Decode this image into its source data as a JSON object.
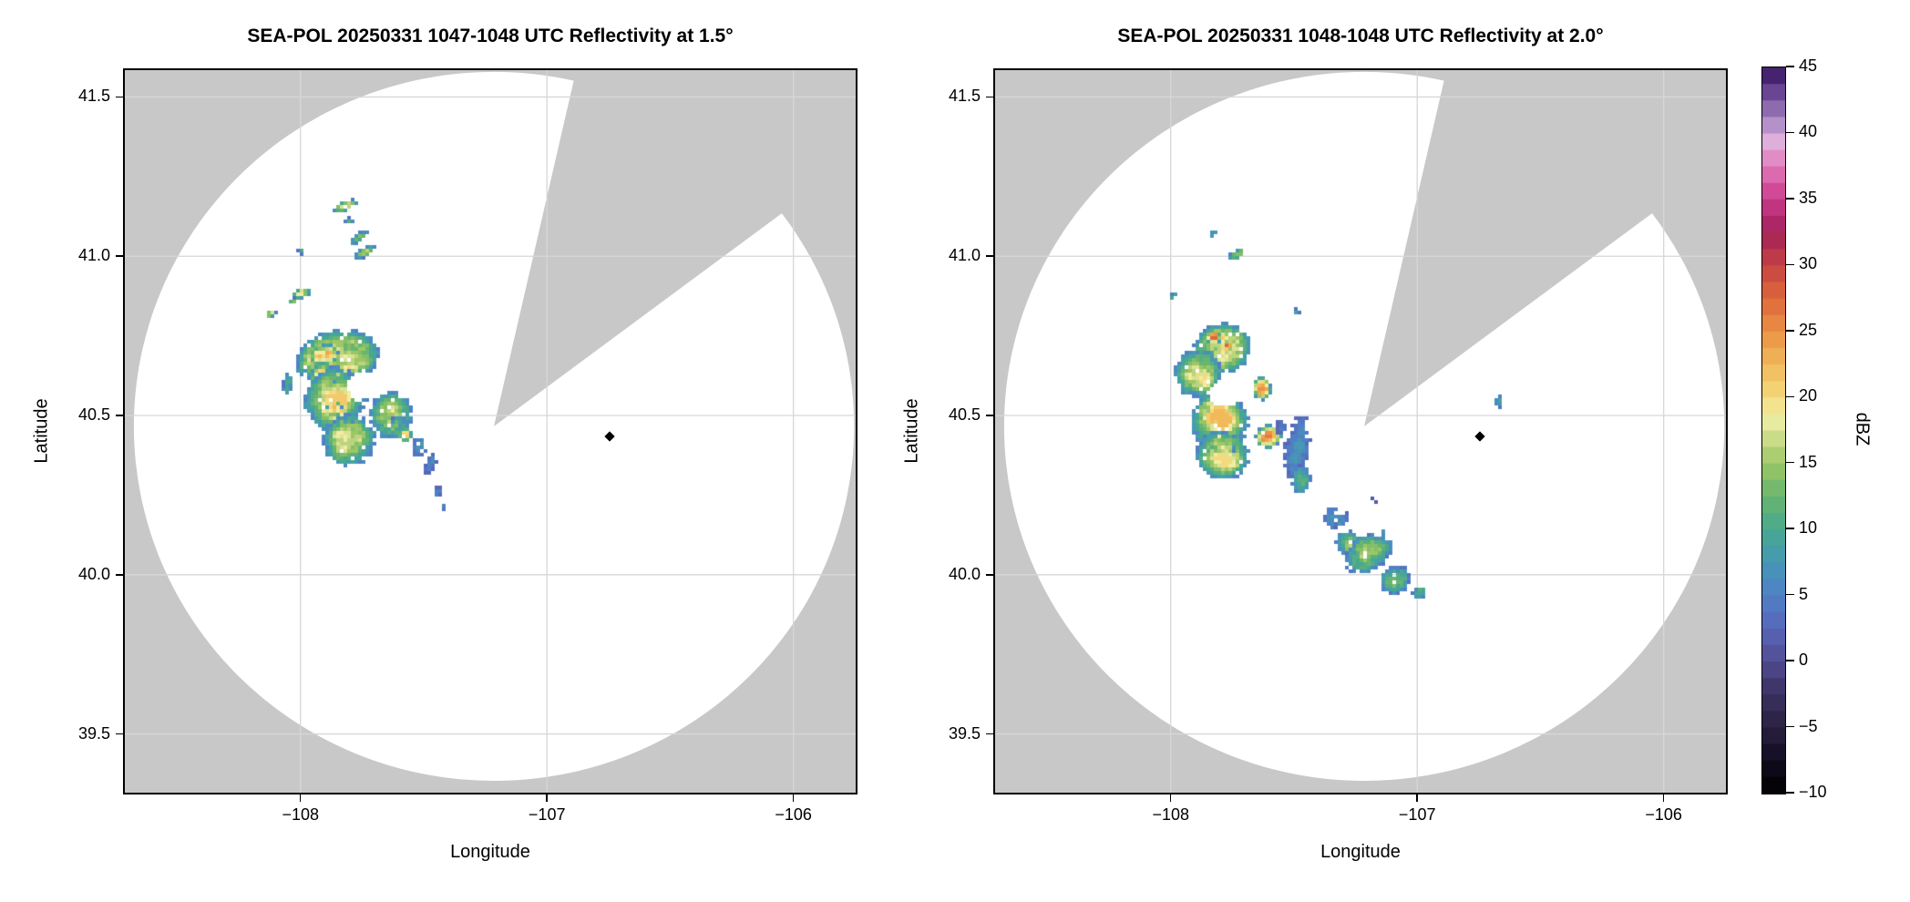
{
  "figure": {
    "background": "#ffffff",
    "mask_color": "#c8c8c8",
    "grid_color": "#d7d7d7",
    "frame_color": "#000000",
    "marker_color": "#000000"
  },
  "chart_data": {
    "type": "heatmap",
    "description": "Two radar PPI reflectivity panels with shared dBZ colorbar; white scan circle on gray no-data mask with a gray blocked sector toward the NNE, speckled precipitation echoes, and a black diamond site marker.",
    "panels": [
      {
        "title": "SEA-POL 20250331 1047-1048 UTC Reflectivity at 1.5°",
        "xlabel": "Longitude",
        "ylabel": "Latitude",
        "xlim": [
          -108.72,
          -105.74
        ],
        "ylim": [
          39.31,
          41.59
        ],
        "xticks": [
          -108,
          -107,
          -106
        ],
        "yticks": [
          41.5,
          41.0,
          40.5,
          40.0,
          39.5
        ],
        "grid": true,
        "radar_center": {
          "lon": -107.215,
          "lat": 40.466
        },
        "scan_radius_deg": {
          "lon": 1.461,
          "lat": 1.113
        },
        "blocked_sector_az_deg": [
          13,
          53.5
        ],
        "site_marker": {
          "lon": -106.747,
          "lat": 40.434
        },
        "echoes": [
          {
            "lon": -107.82,
            "lat": 41.157,
            "rlon": 0.05,
            "rlat": 0.016,
            "rot": -20,
            "peak": 19,
            "min": 4
          },
          {
            "lon": -107.8,
            "lat": 41.112,
            "rlon": 0.018,
            "rlat": 0.009,
            "rot": 0,
            "peak": 12,
            "min": 3.5
          },
          {
            "lon": -107.76,
            "lat": 41.06,
            "rlon": 0.045,
            "rlat": 0.012,
            "rot": -35,
            "peak": 13,
            "min": 3.5
          },
          {
            "lon": -107.74,
            "lat": 41.012,
            "rlon": 0.05,
            "rlat": 0.014,
            "rot": -30,
            "peak": 15,
            "min": 4
          },
          {
            "lon": -108.0,
            "lat": 41.015,
            "rlon": 0.012,
            "rlat": 0.007,
            "rot": 0,
            "peak": 9,
            "min": 3
          },
          {
            "lon": -107.99,
            "lat": 40.885,
            "rlon": 0.04,
            "rlat": 0.016,
            "rot": -15,
            "peak": 20,
            "min": 4
          },
          {
            "lon": -108.03,
            "lat": 40.86,
            "rlon": 0.018,
            "rlat": 0.009,
            "rot": 0,
            "peak": 12,
            "min": 3.5
          },
          {
            "lon": -108.12,
            "lat": 40.82,
            "rlon": 0.024,
            "rlat": 0.011,
            "rot": -20,
            "peak": 15,
            "min": 4
          },
          {
            "lon": -108.05,
            "lat": 40.6,
            "rlon": 0.022,
            "rlat": 0.038,
            "rot": 10,
            "peak": 13,
            "min": 4
          },
          {
            "lon": -107.85,
            "lat": 40.68,
            "rlon": 0.165,
            "rlat": 0.085,
            "rot": -8,
            "peak": 21,
            "min": 5
          },
          {
            "lon": -107.905,
            "lat": 40.69,
            "rlon": 0.055,
            "rlat": 0.032,
            "rot": -12,
            "peak": 27,
            "min": 6
          },
          {
            "lon": -107.91,
            "lat": 40.61,
            "rlon": 0.05,
            "rlat": 0.05,
            "rot": 0,
            "peak": 26,
            "min": 6
          },
          {
            "lon": -107.86,
            "lat": 40.55,
            "rlon": 0.125,
            "rlat": 0.1,
            "rot": 0,
            "peak": 19,
            "min": 5
          },
          {
            "lon": -107.865,
            "lat": 40.52,
            "rlon": 0.032,
            "rlat": 0.026,
            "rot": 0,
            "peak": 26,
            "min": 6
          },
          {
            "lon": -107.8,
            "lat": 40.42,
            "rlon": 0.105,
            "rlat": 0.085,
            "rot": -10,
            "peak": 17,
            "min": 5
          },
          {
            "lon": -107.63,
            "lat": 40.5,
            "rlon": 0.085,
            "rlat": 0.075,
            "rot": 0,
            "peak": 17,
            "min": 5
          },
          {
            "lon": -107.575,
            "lat": 40.44,
            "rlon": 0.028,
            "rlat": 0.02,
            "rot": 0,
            "peak": 27,
            "min": 6
          },
          {
            "lon": -107.6,
            "lat": 40.48,
            "rlon": 0.04,
            "rlat": 0.02,
            "rot": -25,
            "peak": 10,
            "min": 4
          },
          {
            "lon": -107.52,
            "lat": 40.4,
            "rlon": 0.03,
            "rlat": 0.03,
            "rot": 0,
            "peak": 9,
            "min": 3.5
          },
          {
            "lon": -107.47,
            "lat": 40.35,
            "rlon": 0.022,
            "rlat": 0.04,
            "rot": 15,
            "peak": 5,
            "min": 2
          },
          {
            "lon": -107.44,
            "lat": 40.26,
            "rlon": 0.014,
            "rlat": 0.02,
            "rot": 0,
            "peak": 6,
            "min": 2
          },
          {
            "lon": -107.42,
            "lat": 40.21,
            "rlon": 0.012,
            "rlat": 0.012,
            "rot": 0,
            "peak": 5,
            "min": 2
          }
        ],
        "holes": [
          {
            "lon": -107.755,
            "lat": 40.59,
            "rlon": 0.055,
            "rlat": 0.04
          }
        ]
      },
      {
        "title": "SEA-POL 20250331 1048-1048 UTC Reflectivity at 2.0°",
        "xlabel": "Longitude",
        "ylabel": "Latitude",
        "xlim": [
          -108.72,
          -105.74
        ],
        "ylim": [
          39.31,
          41.59
        ],
        "xticks": [
          -108,
          -107,
          -106
        ],
        "yticks": [
          41.5,
          41.0,
          40.5,
          40.0,
          39.5
        ],
        "grid": true,
        "radar_center": {
          "lon": -107.215,
          "lat": 40.466
        },
        "scan_radius_deg": {
          "lon": 1.461,
          "lat": 1.113
        },
        "blocked_sector_az_deg": [
          13,
          53.5
        ],
        "site_marker": {
          "lon": -106.747,
          "lat": 40.434
        },
        "echoes": [
          {
            "lon": -107.83,
            "lat": 41.071,
            "rlon": 0.02,
            "rlat": 0.009,
            "rot": -30,
            "peak": 14,
            "min": 4
          },
          {
            "lon": -107.73,
            "lat": 41.006,
            "rlon": 0.045,
            "rlat": 0.014,
            "rot": -30,
            "peak": 15,
            "min": 4
          },
          {
            "lon": -107.985,
            "lat": 40.877,
            "rlon": 0.022,
            "rlat": 0.009,
            "rot": -40,
            "peak": 12,
            "min": 3.5
          },
          {
            "lon": -107.49,
            "lat": 40.826,
            "rlon": 0.014,
            "rlat": 0.008,
            "rot": 0,
            "peak": 12,
            "min": 3.5
          },
          {
            "lon": -107.79,
            "lat": 40.71,
            "rlon": 0.115,
            "rlat": 0.075,
            "rot": -10,
            "peak": 21,
            "min": 5
          },
          {
            "lon": -107.825,
            "lat": 40.745,
            "rlon": 0.03,
            "rlat": 0.02,
            "rot": 0,
            "peak": 26,
            "min": 6
          },
          {
            "lon": -107.77,
            "lat": 40.72,
            "rlon": 0.022,
            "rlat": 0.016,
            "rot": 0,
            "peak": 26,
            "min": 6
          },
          {
            "lon": -107.875,
            "lat": 40.685,
            "rlon": 0.055,
            "rlat": 0.022,
            "rot": -5,
            "peak": 26,
            "min": 6
          },
          {
            "lon": -107.89,
            "lat": 40.63,
            "rlon": 0.095,
            "rlat": 0.075,
            "rot": 0,
            "peak": 19,
            "min": 5
          },
          {
            "lon": -107.63,
            "lat": 40.585,
            "rlon": 0.035,
            "rlat": 0.035,
            "rot": 0,
            "peak": 28,
            "min": 6
          },
          {
            "lon": -107.8,
            "lat": 40.48,
            "rlon": 0.115,
            "rlat": 0.095,
            "rot": 0,
            "peak": 20,
            "min": 5
          },
          {
            "lon": -107.6,
            "lat": 40.435,
            "rlon": 0.055,
            "rlat": 0.035,
            "rot": -20,
            "peak": 29,
            "min": 6
          },
          {
            "lon": -107.79,
            "lat": 40.375,
            "rlon": 0.105,
            "rlat": 0.075,
            "rot": 0,
            "peak": 18,
            "min": 5
          },
          {
            "lon": -107.49,
            "lat": 40.39,
            "rlon": 0.05,
            "rlat": 0.105,
            "rot": 10,
            "peak": 6,
            "min": 2.5
          },
          {
            "lon": -107.55,
            "lat": 40.46,
            "rlon": 0.025,
            "rlat": 0.03,
            "rot": 0,
            "peak": 4,
            "min": 2
          },
          {
            "lon": -107.47,
            "lat": 40.3,
            "rlon": 0.04,
            "rlat": 0.045,
            "rot": 0,
            "peak": 12,
            "min": 3.5
          },
          {
            "lon": -107.33,
            "lat": 40.18,
            "rlon": 0.05,
            "rlat": 0.04,
            "rot": -35,
            "peak": 7,
            "min": 2.5
          },
          {
            "lon": -107.28,
            "lat": 40.1,
            "rlon": 0.05,
            "rlat": 0.04,
            "rot": -30,
            "peak": 15,
            "min": 4
          },
          {
            "lon": -107.2,
            "lat": 40.065,
            "rlon": 0.1,
            "rlat": 0.055,
            "rot": -30,
            "peak": 16,
            "min": 4
          },
          {
            "lon": -107.09,
            "lat": 39.985,
            "rlon": 0.06,
            "rlat": 0.045,
            "rot": -30,
            "peak": 13,
            "min": 3.5
          },
          {
            "lon": -106.99,
            "lat": 39.945,
            "rlon": 0.03,
            "rlat": 0.02,
            "rot": -30,
            "peak": 10,
            "min": 3
          },
          {
            "lon": -107.176,
            "lat": 40.235,
            "rlon": 0.012,
            "rlat": 0.012,
            "rot": 0,
            "peak": 2,
            "min": 1
          },
          {
            "lon": -107.14,
            "lat": 40.13,
            "rlon": 0.014,
            "rlat": 0.014,
            "rot": 0,
            "peak": 6,
            "min": 2
          },
          {
            "lon": -106.67,
            "lat": 40.545,
            "rlon": 0.016,
            "rlat": 0.025,
            "rot": 0,
            "peak": 10,
            "min": 3
          }
        ],
        "holes": [
          {
            "lon": -107.785,
            "lat": 40.569,
            "rlon": 0.065,
            "rlat": 0.042
          }
        ]
      }
    ],
    "colorbar": {
      "label": "dBZ",
      "vmin": -10,
      "vmax": 45,
      "ticks": [
        45,
        40,
        35,
        30,
        25,
        20,
        15,
        10,
        5,
        0,
        -5,
        -10
      ],
      "band_step": 1.25,
      "stops": [
        [
          -10,
          "#000000"
        ],
        [
          -7,
          "#160f28"
        ],
        [
          -5,
          "#29203f"
        ],
        [
          -2,
          "#3e3568"
        ],
        [
          0,
          "#514c93"
        ],
        [
          2.5,
          "#5767b8"
        ],
        [
          5,
          "#4f80c6"
        ],
        [
          7.5,
          "#4698b4"
        ],
        [
          10,
          "#46a98f"
        ],
        [
          12.5,
          "#68b56e"
        ],
        [
          15,
          "#9dc665"
        ],
        [
          17,
          "#cedd8b"
        ],
        [
          18.5,
          "#f1f0a6"
        ],
        [
          20,
          "#f4da7c"
        ],
        [
          22.5,
          "#f1b95a"
        ],
        [
          25,
          "#ea9145"
        ],
        [
          27.5,
          "#de683b"
        ],
        [
          30,
          "#c64243"
        ],
        [
          32.5,
          "#a22158"
        ],
        [
          35,
          "#cb3a8c"
        ],
        [
          37.5,
          "#e27ab9"
        ],
        [
          39.5,
          "#dfb3de"
        ],
        [
          41,
          "#a586c0"
        ],
        [
          43,
          "#6d4898"
        ],
        [
          45,
          "#33125b"
        ]
      ]
    }
  }
}
